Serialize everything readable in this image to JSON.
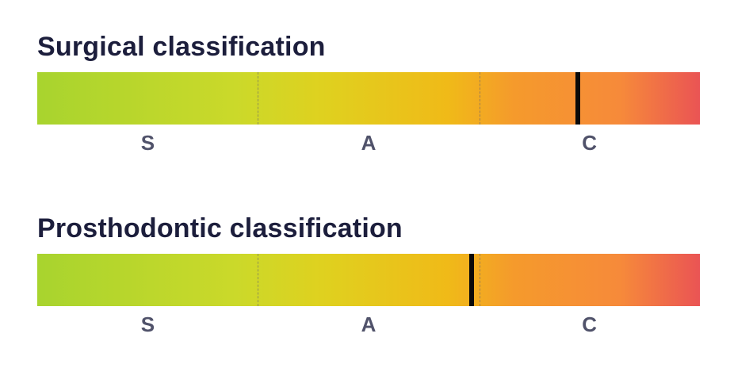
{
  "classifications": [
    {
      "title": "Surgical classification",
      "zones": [
        "S",
        "A",
        "C"
      ],
      "marker_position": 0.816
    },
    {
      "title": "Prosthodontic classification",
      "zones": [
        "S",
        "A",
        "C"
      ],
      "marker_position": 0.656
    }
  ],
  "colors": {
    "title": "#1c1e3c",
    "zone_label": "#50526a",
    "gradient_start": "#a8d42e",
    "gradient_mid": "#f0ba18",
    "gradient_end": "#ea5454",
    "marker": "#0a0a0a"
  }
}
